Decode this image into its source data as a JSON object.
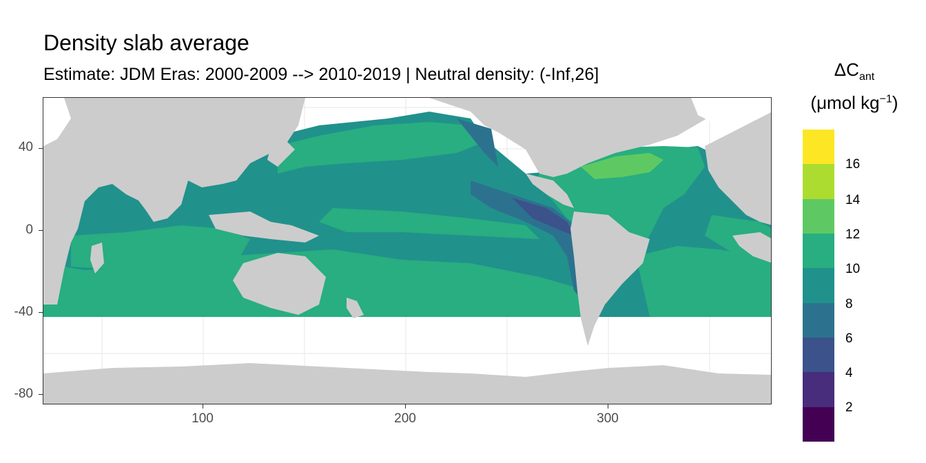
{
  "title": "Density slab average",
  "subtitle": "Estimate: JDM Eras: 2000-2009 --> 2010-2019 | Neutral density: (-Inf,26]",
  "legend": {
    "symbol": "ΔC",
    "subscript": "ant",
    "unit_prefix": "(μmol kg",
    "unit_exponent": "−1",
    "unit_suffix": ")",
    "labels": [
      "16",
      "14",
      "12",
      "10",
      "8",
      "6",
      "4",
      "2"
    ],
    "color_bins": [
      {
        "from": 16,
        "to": 18,
        "color": "#fde725"
      },
      {
        "from": 14,
        "to": 16,
        "color": "#addc30"
      },
      {
        "from": 12,
        "to": 14,
        "color": "#5ec962"
      },
      {
        "from": 10,
        "to": 12,
        "color": "#28ae80"
      },
      {
        "from": 8,
        "to": 10,
        "color": "#21918c"
      },
      {
        "from": 6,
        "to": 8,
        "color": "#2c728e"
      },
      {
        "from": 4,
        "to": 6,
        "color": "#3b528b"
      },
      {
        "from": 2,
        "to": 4,
        "color": "#472d7b"
      },
      {
        "from": 0,
        "to": 2,
        "color": "#440154"
      }
    ]
  },
  "axes": {
    "x_ticks": [
      "100",
      "200",
      "300"
    ],
    "y_ticks": [
      "40",
      "0",
      "-40",
      "-80"
    ],
    "x_range": [
      20,
      380
    ],
    "y_range": [
      -85,
      65
    ]
  },
  "colors": {
    "land": "#cccccc",
    "no_data": "#ffffff",
    "grid": "#ebebeb"
  }
}
